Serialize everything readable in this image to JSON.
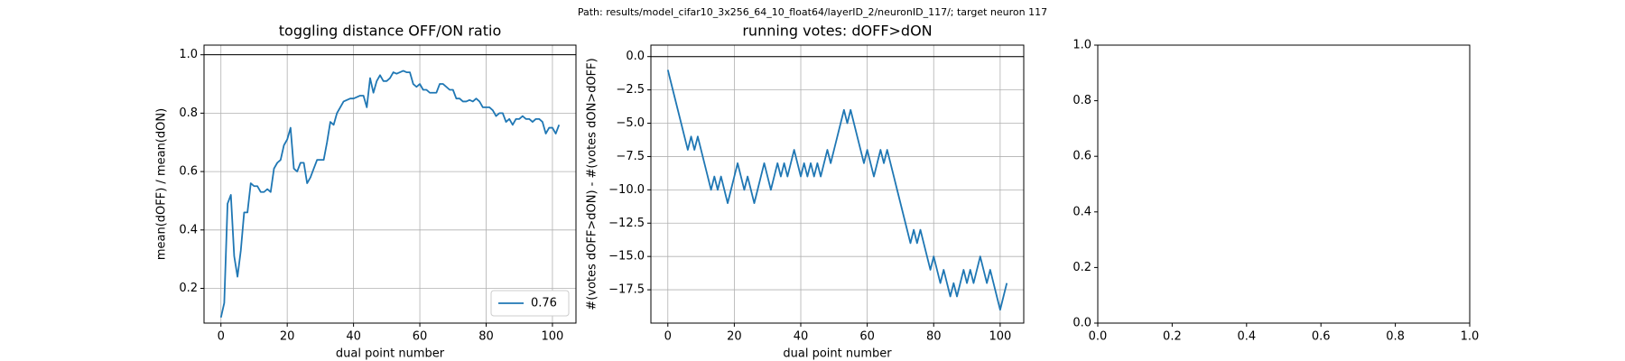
{
  "suptitle": "Path: results/model_cifar10_3x256_64_10_float64/layerID_2/neuronID_117/; target neuron 117",
  "chart_data": [
    {
      "type": "line",
      "title": "toggling distance OFF/ON ratio",
      "xlabel": "dual point number",
      "ylabel": "mean(dOFF) / mean(dON)",
      "xlim": [
        -5.1,
        107.1
      ],
      "ylim": [
        0.081,
        1.033
      ],
      "xticks": [
        0,
        20,
        40,
        60,
        80,
        100
      ],
      "yticks": [
        0.2,
        0.4,
        0.6,
        0.8,
        {
          "value": 1,
          "label": "1.0"
        }
      ],
      "grid": true,
      "hline": 1,
      "legend": "lower right",
      "x": [
        0,
        1,
        2,
        3,
        4,
        5,
        6,
        7,
        8,
        9,
        10,
        11,
        12,
        13,
        14,
        15,
        16,
        17,
        18,
        19,
        20,
        21,
        22,
        23,
        24,
        25,
        26,
        27,
        28,
        29,
        30,
        31,
        32,
        33,
        34,
        35,
        36,
        37,
        38,
        39,
        40,
        41,
        42,
        43,
        44,
        45,
        46,
        47,
        48,
        49,
        50,
        51,
        52,
        53,
        54,
        55,
        56,
        57,
        58,
        59,
        60,
        61,
        62,
        63,
        64,
        65,
        66,
        67,
        68,
        69,
        70,
        71,
        72,
        73,
        74,
        75,
        76,
        77,
        78,
        79,
        80,
        81,
        82,
        83,
        84,
        85,
        86,
        87,
        88,
        89,
        90,
        91,
        92,
        93,
        94,
        95,
        96,
        97,
        98,
        99,
        100,
        101,
        102
      ],
      "series": [
        {
          "name": "0.76",
          "color": "#1f77b4",
          "values": [
            0.1,
            0.15,
            0.49,
            0.52,
            0.31,
            0.24,
            0.33,
            0.46,
            0.46,
            0.56,
            0.55,
            0.55,
            0.53,
            0.53,
            0.54,
            0.53,
            0.61,
            0.63,
            0.64,
            0.69,
            0.71,
            0.75,
            0.61,
            0.6,
            0.63,
            0.63,
            0.56,
            0.58,
            0.61,
            0.64,
            0.64,
            0.64,
            0.7,
            0.77,
            0.76,
            0.8,
            0.82,
            0.84,
            0.845,
            0.85,
            0.85,
            0.855,
            0.86,
            0.86,
            0.82,
            0.92,
            0.87,
            0.91,
            0.93,
            0.91,
            0.91,
            0.92,
            0.94,
            0.935,
            0.94,
            0.945,
            0.94,
            0.94,
            0.9,
            0.89,
            0.9,
            0.88,
            0.88,
            0.87,
            0.87,
            0.87,
            0.9,
            0.9,
            0.89,
            0.88,
            0.88,
            0.85,
            0.85,
            0.84,
            0.84,
            0.845,
            0.84,
            0.85,
            0.84,
            0.82,
            0.82,
            0.82,
            0.81,
            0.79,
            0.8,
            0.8,
            0.77,
            0.78,
            0.76,
            0.78,
            0.78,
            0.79,
            0.78,
            0.78,
            0.77,
            0.78,
            0.78,
            0.77,
            0.73,
            0.75,
            0.75,
            0.73,
            0.76
          ]
        }
      ]
    },
    {
      "type": "line",
      "title": "running votes: dOFF>dON",
      "xlabel": "dual point number",
      "ylabel": "#(votes dOFF>dON) - #(votes dON>dOFF)",
      "xlim": [
        -5.1,
        107.1
      ],
      "ylim": [
        -20.0,
        0.86
      ],
      "xticks": [
        0,
        20,
        40,
        60,
        80,
        100
      ],
      "yticks": [
        {
          "value": 0,
          "label": "0.0"
        },
        {
          "value": -2.5,
          "label": "−2.5"
        },
        {
          "value": -5,
          "label": "−5.0"
        },
        {
          "value": -7.5,
          "label": "−7.5"
        },
        {
          "value": -10,
          "label": "−10.0"
        },
        {
          "value": -12.5,
          "label": "−12.5"
        },
        {
          "value": -15,
          "label": "−15.0"
        },
        {
          "value": -17.5,
          "label": "−17.5"
        }
      ],
      "grid": true,
      "hline": 0,
      "x": [
        0,
        1,
        2,
        3,
        4,
        5,
        6,
        7,
        8,
        9,
        10,
        11,
        12,
        13,
        14,
        15,
        16,
        17,
        18,
        19,
        20,
        21,
        22,
        23,
        24,
        25,
        26,
        27,
        28,
        29,
        30,
        31,
        32,
        33,
        34,
        35,
        36,
        37,
        38,
        39,
        40,
        41,
        42,
        43,
        44,
        45,
        46,
        47,
        48,
        49,
        50,
        51,
        52,
        53,
        54,
        55,
        56,
        57,
        58,
        59,
        60,
        61,
        62,
        63,
        64,
        65,
        66,
        67,
        68,
        69,
        70,
        71,
        72,
        73,
        74,
        75,
        76,
        77,
        78,
        79,
        80,
        81,
        82,
        83,
        84,
        85,
        86,
        87,
        88,
        89,
        90,
        91,
        92,
        93,
        94,
        95,
        96,
        97,
        98,
        99,
        100,
        101,
        102
      ],
      "series": [
        {
          "color": "#1f77b4",
          "values": [
            -1,
            -2,
            -3,
            -4,
            -5,
            -6,
            -7,
            -6,
            -7,
            -6,
            -7,
            -8,
            -9,
            -10,
            -9,
            -10,
            -9,
            -10,
            -11,
            -10,
            -9,
            -8,
            -9,
            -10,
            -9,
            -10,
            -11,
            -10,
            -9,
            -8,
            -9,
            -10,
            -9,
            -8,
            -9,
            -8,
            -9,
            -8,
            -7,
            -8,
            -9,
            -8,
            -9,
            -8,
            -9,
            -8,
            -9,
            -8,
            -7,
            -8,
            -7,
            -6,
            -5,
            -4,
            -5,
            -4,
            -5,
            -6,
            -7,
            -8,
            -7,
            -8,
            -9,
            -8,
            -7,
            -8,
            -7,
            -8,
            -9,
            -10,
            -11,
            -12,
            -13,
            -14,
            -13,
            -14,
            -13,
            -14,
            -15,
            -16,
            -15,
            -16,
            -17,
            -16,
            -17,
            -18,
            -17,
            -18,
            -17,
            -16,
            -17,
            -16,
            -17,
            -16,
            -15,
            -16,
            -17,
            -16,
            -17,
            -18,
            -19,
            -18,
            -17
          ]
        }
      ]
    },
    {
      "type": "line",
      "xlim": [
        0,
        1
      ],
      "ylim": [
        0,
        1
      ],
      "xticks": [
        {
          "value": 0,
          "label": "0.0"
        },
        0.2,
        0.4,
        0.6,
        0.8,
        {
          "value": 1,
          "label": "1.0"
        }
      ],
      "yticks": [
        {
          "value": 0,
          "label": "0.0"
        },
        0.2,
        0.4,
        0.6,
        0.8,
        {
          "value": 1,
          "label": "1.0"
        }
      ],
      "grid": false
    }
  ]
}
